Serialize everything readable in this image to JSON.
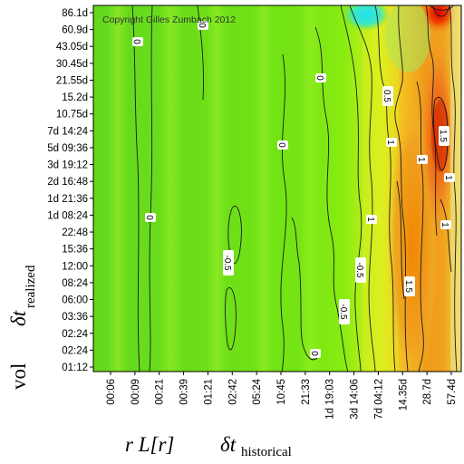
{
  "chart_data": {
    "type": "heatmap",
    "title": "",
    "copyright": "Copyright Gilles Zumbach 2012",
    "xlabel": {
      "part1": "r L[r]",
      "part2_symbol": "δt",
      "part2_subscript": "historical"
    },
    "ylabel": {
      "part1": "vol",
      "part2_symbol": "δt",
      "part2_subscript": "realized"
    },
    "x_ticks": [
      "00:06",
      "00:09",
      "00:21",
      "00:39",
      "01:21",
      "02:42",
      "05:24",
      "10:45",
      "21:33",
      "1d 19:03",
      "3d 14:06",
      "7d 04:12",
      "14.35d",
      "28.7d",
      "57.4d"
    ],
    "y_ticks": [
      "86.1d",
      "60.9d",
      "43.05d",
      "30.45d",
      "21.55d",
      "15.2d",
      "10.75d",
      "7d 14:24",
      "5d 09:36",
      "3d 19:12",
      "2d 16:48",
      "1d 21:36",
      "1d 08:24",
      "22:48",
      "15:36",
      "12:00",
      "08:24",
      "06:00",
      "03:36",
      "02:24",
      "02:24",
      "01:12"
    ],
    "contour_levels": [
      -0.5,
      0,
      0.5,
      1,
      1.5
    ],
    "contour_labels": [
      "0",
      "0",
      "0",
      "0",
      "0",
      "0",
      "-0.5",
      "-0.5",
      "-0.5",
      "0.5",
      "1",
      "1",
      "1.5",
      "1.5",
      "1",
      "1",
      "1"
    ],
    "colormap": {
      "low": "#00c8ff",
      "mid_low": "#3cdc3c",
      "mid": "#80ff00",
      "mid_high": "#ffff00",
      "high": "#ff8000",
      "max": "#d00000"
    }
  }
}
